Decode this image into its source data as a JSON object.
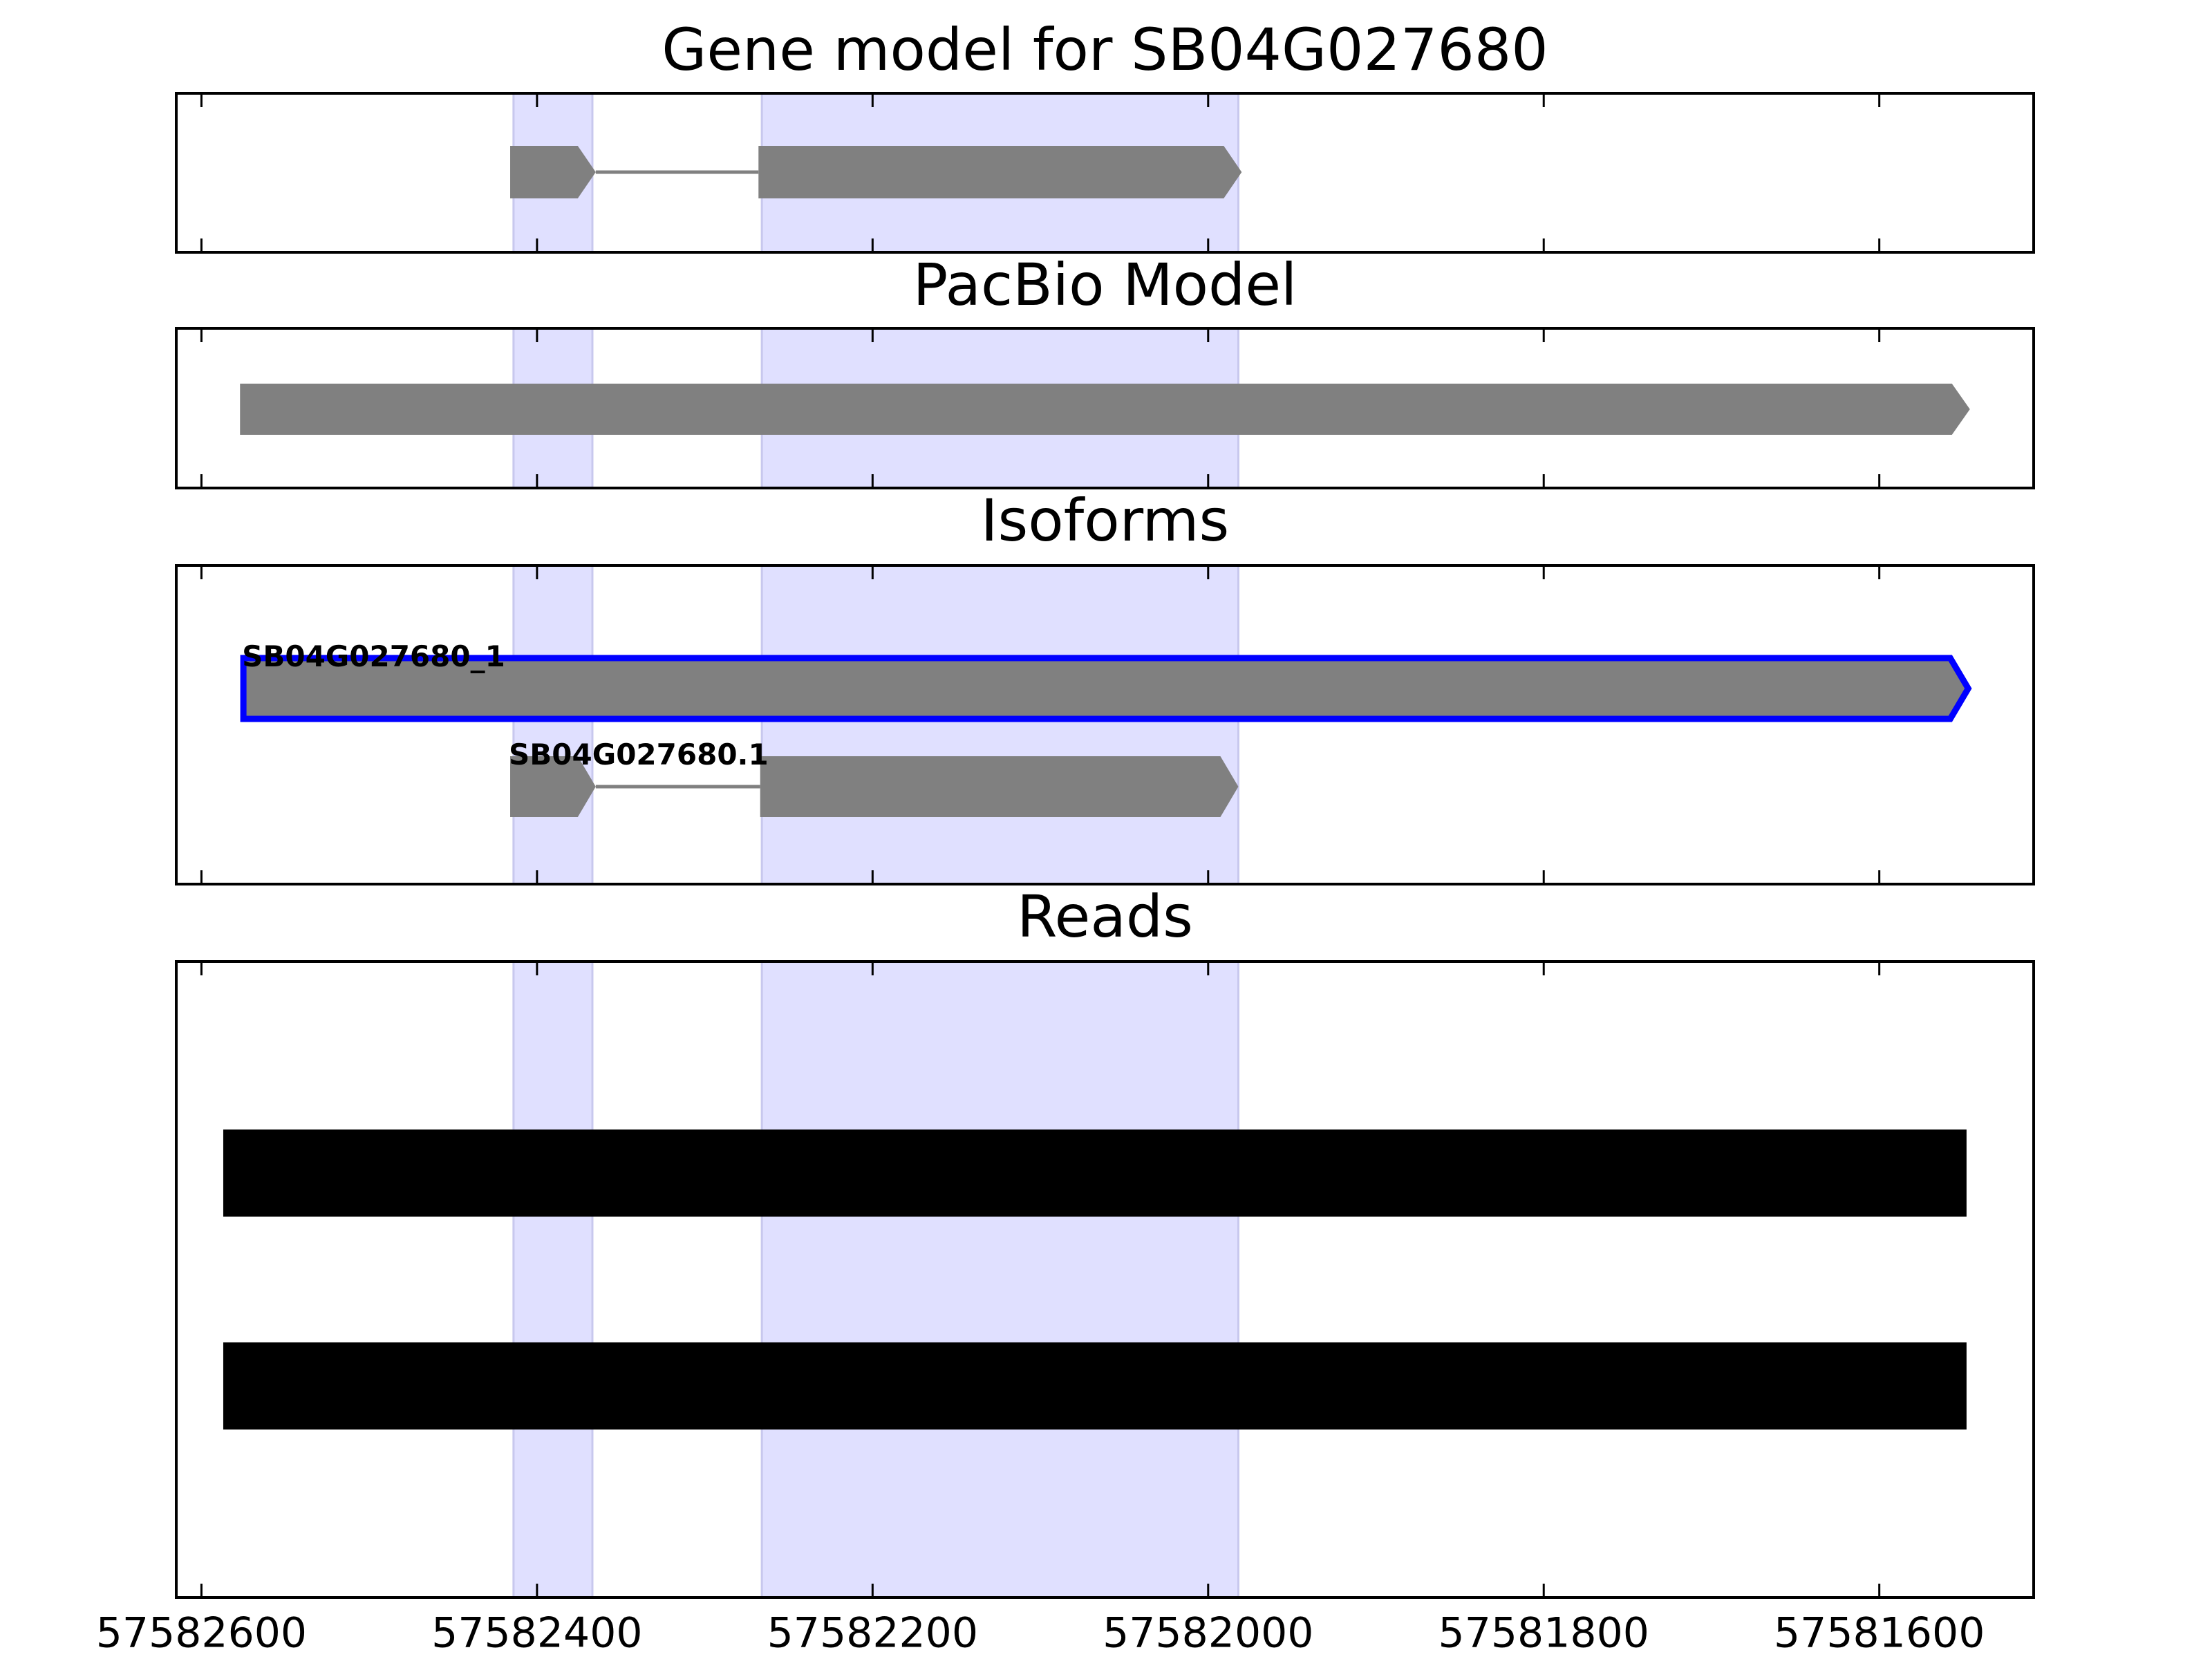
{
  "chart_data": {
    "type": "track",
    "xlim": [
      57582615,
      57581508
    ],
    "xticks": [
      57582600,
      57582400,
      57582200,
      57582000,
      57581800,
      57581600
    ],
    "highlights": [
      [
        57582414,
        57582367
      ],
      [
        57582266,
        57581982
      ]
    ],
    "highlight_color": "#e0e0ff",
    "panels": [
      {
        "title": "Gene model for SB04G027680",
        "features": [
          {
            "exons": [
              [
                57582416,
                57582365
              ],
              [
                57582268,
                57581980
              ]
            ],
            "color": "#808080",
            "arrow": true
          }
        ]
      },
      {
        "title": "PacBio Model",
        "features": [
          {
            "exons": [
              [
                57582577,
                57581546
              ]
            ],
            "color": "#808080",
            "arrow": true
          }
        ]
      },
      {
        "title": "Isoforms",
        "features": [
          {
            "name": "SB04G027680_1",
            "exons": [
              [
                57582575,
                57581547
              ]
            ],
            "color": "#808080",
            "edgecolor": "#0000ff",
            "arrow": true
          },
          {
            "name": "SB04G027680.1",
            "exons": [
              [
                57582416,
                57582365
              ],
              [
                57582267,
                57581982
              ]
            ],
            "color": "#808080",
            "arrow": true
          }
        ]
      },
      {
        "title": "Reads",
        "features": [
          {
            "exons": [
              [
                57582587,
                57581548
              ]
            ],
            "color": "#000000",
            "arrow": false
          },
          {
            "exons": [
              [
                57582587,
                57581548
              ]
            ],
            "color": "#000000",
            "arrow": false
          }
        ]
      }
    ]
  }
}
